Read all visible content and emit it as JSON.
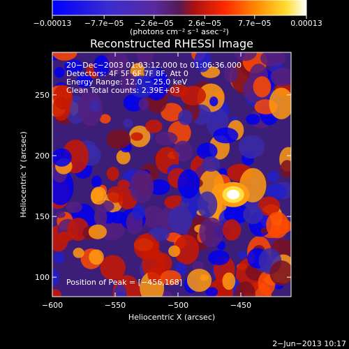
{
  "chart_data": {
    "type": "heatmap",
    "title": "Reconstructed RHESSI Image",
    "xlabel": "Heliocentric X (arcsec)",
    "ylabel": "Heliocentric Y (arcsec)",
    "xlim": [
      -600,
      -410
    ],
    "ylim": [
      84,
      285
    ],
    "x_ticks": [
      -600,
      -550,
      -500,
      -450
    ],
    "x_tick_labels": [
      "−600",
      "−550",
      "−500",
      "−450"
    ],
    "y_ticks": [
      100,
      150,
      200,
      250
    ],
    "y_tick_labels": [
      "100",
      "150",
      "200",
      "250"
    ],
    "colorbar": {
      "colormap": "blue-purple-red-orange-yellow-white",
      "range": [
        -0.00013,
        0.00013
      ],
      "ticks": [
        -0.00013,
        -7.7e-05,
        -2.6e-05,
        2.6e-05,
        7.7e-05,
        0.00013
      ],
      "tick_labels": [
        "−0.00013",
        "−7.7e−05",
        "−2.6e−05",
        "2.6e−05",
        "7.7e−05",
        "0.00013"
      ],
      "unit_label": "(photons cm⁻² s⁻¹ asec⁻²)"
    },
    "annotations": [
      "20−Dec−2003 01:03:12.000 to 01:06:36.000",
      "Detectors: 4F 5F 6F 7F 8F, Att 0",
      "Energy Range: 12.0 − 25.0 keV",
      "Clean    Total counts: 2.39E+03"
    ],
    "peak_label": "Position of Peak = [−456,168]",
    "peak": {
      "x": -456,
      "y": 168
    },
    "grid": false
  },
  "footer": {
    "date": "2−Jun−2013 10:17"
  }
}
